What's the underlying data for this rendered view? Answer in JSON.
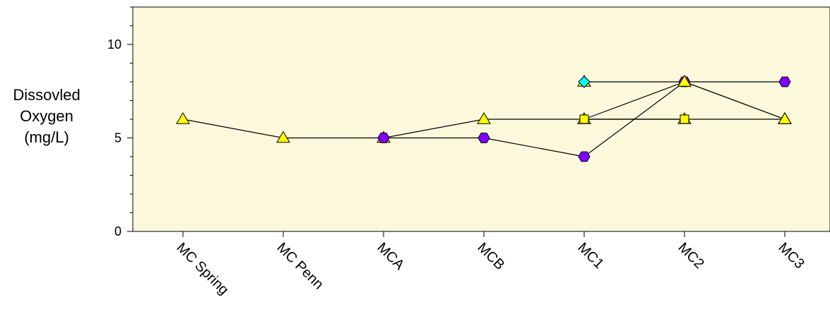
{
  "chart_data": {
    "type": "line",
    "title": "",
    "xlabel": "",
    "ylabel_lines": [
      "Dissovled",
      "Oxygen",
      "(mg/L)"
    ],
    "categories": [
      "MC Spring",
      "MC Penn",
      "MCA",
      "MCB",
      "MC1",
      "MC2",
      "MC3"
    ],
    "ylim": [
      0,
      12
    ],
    "yticks": [
      0,
      5,
      10
    ],
    "grid": false,
    "legend": "none",
    "plot_background": "#fcf8dc",
    "series": [
      {
        "marker": "triangle",
        "color": "#ffff00",
        "values": [
          6,
          5,
          5,
          6,
          6,
          6,
          6
        ]
      },
      {
        "marker": "hexagon",
        "color": "#8000ff",
        "values": [
          null,
          null,
          5,
          5,
          4,
          8,
          8
        ]
      },
      {
        "marker": "triangle",
        "color": "#ffff00",
        "values": [
          null,
          null,
          null,
          null,
          6,
          8,
          6
        ]
      },
      {
        "marker": "triangle",
        "color": "#ffff00",
        "values": [
          null,
          null,
          null,
          null,
          8,
          8,
          6
        ]
      },
      {
        "marker": "diamond",
        "color": "#00ffff",
        "values": [
          null,
          null,
          null,
          null,
          8,
          null,
          null
        ]
      },
      {
        "marker": "square",
        "color": "#ffff00",
        "values": [
          null,
          null,
          null,
          null,
          6,
          6,
          null
        ]
      }
    ]
  }
}
